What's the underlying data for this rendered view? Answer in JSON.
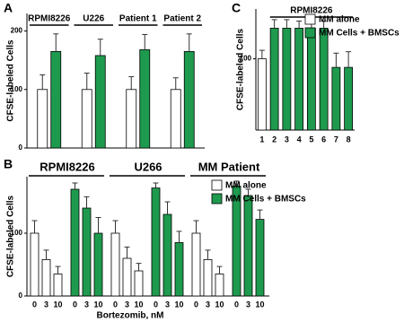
{
  "chart_data": [
    {
      "type": "bar",
      "panel": "A",
      "ylabel": "CFSE-labeled Cells",
      "category_label_position": "top",
      "categories": [
        "RPMI8226",
        "U226",
        "Patient 1",
        "Patient 2"
      ],
      "series": [
        {
          "color": "#ffffff",
          "values": [
            100,
            100,
            100,
            100
          ],
          "errors": [
            25,
            28,
            22,
            20
          ]
        },
        {
          "color": "#1e9a4e",
          "values": [
            165,
            158,
            168,
            165
          ],
          "errors": [
            30,
            28,
            26,
            30
          ]
        }
      ],
      "ylim": [
        0,
        230
      ],
      "yticks": [
        0,
        100,
        200
      ]
    },
    {
      "type": "grouped_bar",
      "panel": "B",
      "ylabel": "CFSE-labeled Cells",
      "xlabel": "Bortezomib, nM",
      "groups": [
        "RPMI8226",
        "U266",
        "MM Patient"
      ],
      "categories": [
        "0",
        "3",
        "10"
      ],
      "series": [
        {
          "name": "MM alone",
          "color": "#ffffff",
          "values": [
            [
              100,
              58,
              35
            ],
            [
              100,
              60,
              40
            ],
            [
              100,
              58,
              35
            ]
          ],
          "errors": [
            [
              20,
              15,
              12
            ],
            [
              20,
              18,
              12
            ],
            [
              20,
              15,
              12
            ]
          ]
        },
        {
          "name": "MM Cells + BMSCs",
          "color": "#1e9a4e",
          "values": [
            [
              170,
              140,
              100
            ],
            [
              172,
              130,
              85
            ],
            [
              175,
              160,
              122
            ]
          ],
          "errors": [
            [
              10,
              18,
              25
            ],
            [
              8,
              20,
              18
            ],
            [
              8,
              10,
              15
            ]
          ]
        }
      ],
      "ylim": [
        0,
        190
      ],
      "yticks": [
        0,
        100
      ],
      "legend": true
    },
    {
      "type": "bar",
      "panel": "C",
      "ylabel": "CFSE-labeled Cells",
      "category_label_position": "bottom",
      "annotation": "RPMI8226",
      "categories": [
        "1",
        "2",
        "3",
        "4",
        "5",
        "6",
        "7",
        "8"
      ],
      "series": [
        {
          "name": "MM alone",
          "color": "#ffffff",
          "values": [
            100,
            null,
            null,
            null,
            null,
            null,
            null,
            null
          ],
          "errors": [
            12,
            null,
            null,
            null,
            null,
            null,
            null,
            null
          ]
        },
        {
          "name": "MM Cells + BMSCs",
          "color": "#1e9a4e",
          "values": [
            null,
            143,
            143,
            143,
            143,
            143,
            88,
            88
          ],
          "errors": [
            null,
            12,
            12,
            10,
            12,
            10,
            20,
            22
          ]
        }
      ],
      "ylim": [
        0,
        170
      ],
      "yticks": [
        100
      ],
      "legend": true
    }
  ]
}
